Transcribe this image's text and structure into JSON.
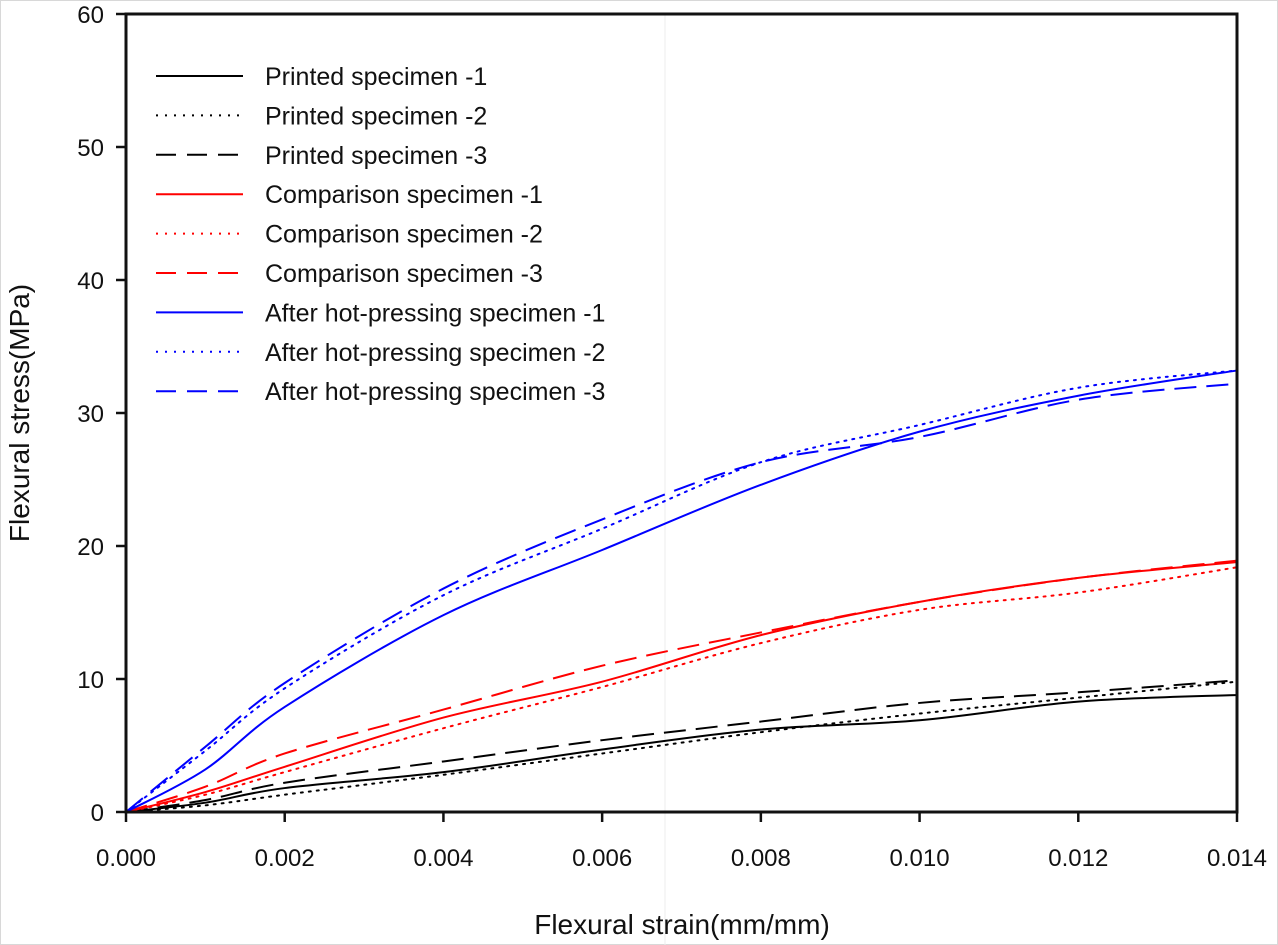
{
  "chart_data": {
    "type": "line",
    "title": "",
    "xlabel": "Flexural strain(mm/mm)",
    "ylabel": "Flexural stress(MPa)",
    "xlim": [
      0,
      0.014
    ],
    "ylim": [
      0,
      60
    ],
    "xticks": [
      0.0,
      0.002,
      0.004,
      0.006,
      0.008,
      0.01,
      0.012,
      0.014
    ],
    "xtick_labels": [
      "0.000",
      "0.002",
      "0.004",
      "0.006",
      "0.008",
      "0.010",
      "0.012",
      "0.014"
    ],
    "yticks": [
      0,
      10,
      20,
      30,
      40,
      50,
      60
    ],
    "ytick_labels": [
      "0",
      "10",
      "20",
      "30",
      "40",
      "50",
      "60"
    ],
    "grid": false,
    "legend_position": "top-left",
    "x": [
      0,
      0.001,
      0.002,
      0.004,
      0.006,
      0.008,
      0.01,
      0.012,
      0.014
    ],
    "series": [
      {
        "name": "Printed specimen -1",
        "color": "#000000",
        "style": "solid",
        "values": [
          0,
          0.7,
          1.8,
          3.0,
          4.7,
          6.2,
          6.9,
          8.3,
          8.8
        ]
      },
      {
        "name": "Printed specimen -2",
        "color": "#000000",
        "style": "dotted",
        "values": [
          0,
          0.5,
          1.3,
          2.8,
          4.4,
          6.0,
          7.4,
          8.6,
          9.8
        ]
      },
      {
        "name": "Printed specimen -3",
        "color": "#000000",
        "style": "dashed",
        "values": [
          0,
          0.9,
          2.2,
          3.8,
          5.4,
          6.8,
          8.2,
          9.0,
          9.9
        ]
      },
      {
        "name": "Comparison specimen -1",
        "color": "#ff0000",
        "style": "solid",
        "values": [
          0,
          1.5,
          3.4,
          7.1,
          9.8,
          13.3,
          15.8,
          17.6,
          18.8
        ]
      },
      {
        "name": "Comparison specimen -2",
        "color": "#ff0000",
        "style": "dotted",
        "values": [
          0,
          1.3,
          3.0,
          6.3,
          9.4,
          12.7,
          15.2,
          16.5,
          18.4
        ]
      },
      {
        "name": "Comparison specimen -3",
        "color": "#ff0000",
        "style": "dashed",
        "values": [
          0,
          1.9,
          4.4,
          7.7,
          11.0,
          13.5,
          15.8,
          17.6,
          18.9
        ]
      },
      {
        "name": "After hot-pressing specimen -1",
        "color": "#0000ff",
        "style": "solid",
        "values": [
          0,
          3.2,
          7.9,
          14.8,
          19.7,
          24.6,
          28.6,
          31.3,
          33.2
        ]
      },
      {
        "name": "After hot-pressing specimen -2",
        "color": "#0000ff",
        "style": "dotted",
        "values": [
          0,
          4.6,
          9.3,
          16.3,
          21.3,
          26.3,
          29.1,
          31.9,
          33.2
        ]
      },
      {
        "name": "After hot-pressing specimen -3",
        "color": "#0000ff",
        "style": "dashed",
        "values": [
          0,
          4.9,
          9.7,
          16.8,
          22.0,
          26.3,
          28.2,
          31.0,
          32.2
        ]
      }
    ]
  }
}
